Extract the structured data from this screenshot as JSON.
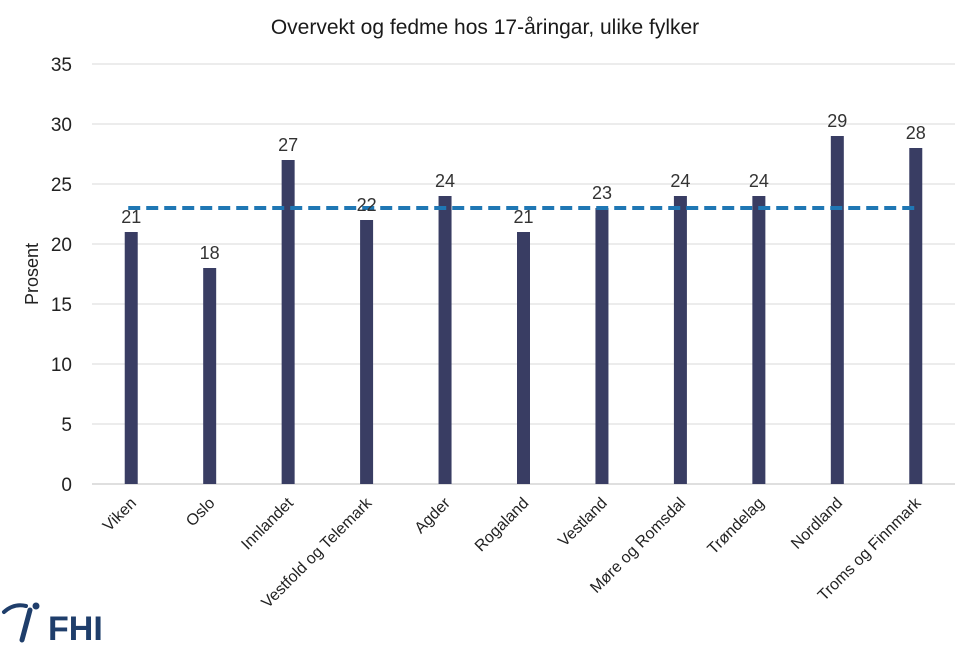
{
  "chart_data": {
    "type": "bar",
    "title": "Overvekt og fedme hos 17-åringar, ulike fylker",
    "ylabel": "Prosent",
    "xlabel": "",
    "ylim": [
      0,
      35
    ],
    "yticks": [
      0,
      5,
      10,
      15,
      20,
      25,
      30,
      35
    ],
    "grid": true,
    "categories": [
      "Viken",
      "Oslo",
      "Innlandet",
      "Vestfold og Telemark",
      "Agder",
      "Rogaland",
      "Vestland",
      "Møre og Romsdal",
      "Trøndelag",
      "Nordland",
      "Troms og Finnmark"
    ],
    "values": [
      21,
      18,
      27,
      22,
      24,
      21,
      23,
      24,
      24,
      29,
      28
    ],
    "reference_line": {
      "value": 23,
      "style": "dashed"
    },
    "colors": {
      "bar": "#393d63",
      "reference": "#1f77b4"
    }
  },
  "logo": {
    "text": "FHI"
  }
}
